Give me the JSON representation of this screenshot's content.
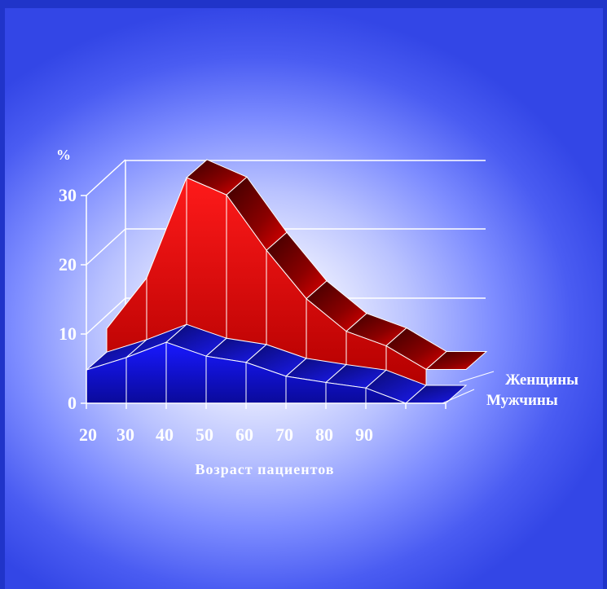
{
  "chart_data": {
    "type": "area",
    "view": "3d-ribbon",
    "y_unit": "%",
    "ylim": [
      0,
      30
    ],
    "y_ticks": [
      "0",
      "10",
      "20",
      "30"
    ],
    "x_ticks": [
      "20",
      "30",
      "40",
      "50",
      "60",
      "70",
      "80",
      "90"
    ],
    "xlabel": "Возраст пациентов",
    "grid": true,
    "legend_position": "right",
    "series": [
      {
        "name": "Мужчины",
        "color": "#1414d0",
        "values": [
          4.8,
          6.6,
          8.8,
          6.8,
          5.9,
          3.9,
          3.0,
          2.2,
          0.0
        ]
      },
      {
        "name": "Женщины",
        "color": "#e60000",
        "values": [
          8.2,
          15.5,
          30.0,
          27.5,
          19.5,
          12.5,
          7.8,
          5.7,
          2.3
        ]
      }
    ],
    "colors": {
      "background_center": "#ffffff",
      "background_edge": "#3346e6",
      "frame": "#2034c9",
      "axes": "#ffffff"
    }
  }
}
